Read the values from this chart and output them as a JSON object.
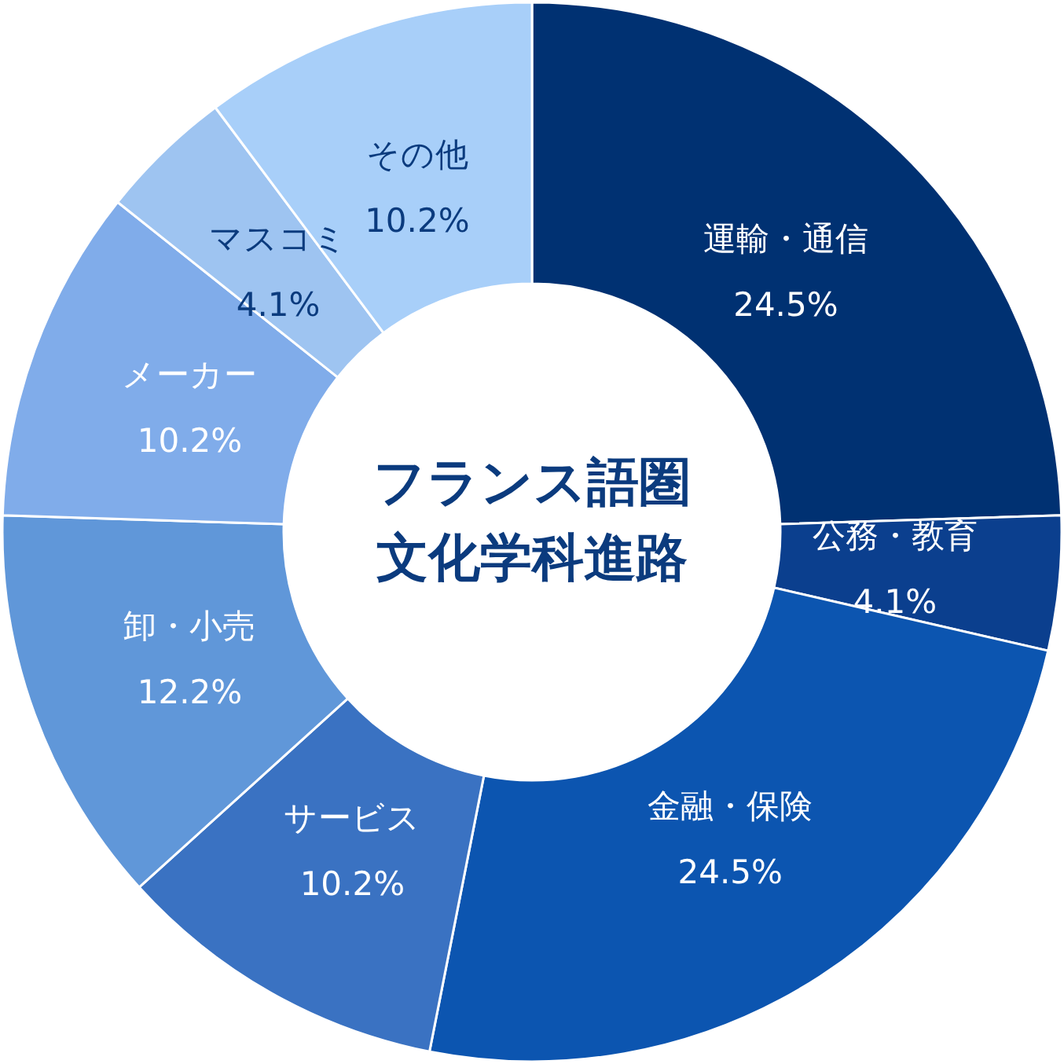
{
  "chart_data": {
    "type": "donut",
    "title": "フランス語圏文化学科進路",
    "categories": [
      "運輸・通信",
      "公務・教育",
      "金融・保険",
      "サービス",
      "卸・小売",
      "メーカー",
      "マスコミ",
      "その他"
    ],
    "values": [
      24.5,
      4.1,
      24.5,
      10.2,
      12.2,
      10.2,
      4.1,
      10.2
    ],
    "value_labels": [
      "24.5%",
      "4.1%",
      "24.5%",
      "10.2%",
      "12.2%",
      "10.2%",
      "4.1%",
      "10.2%"
    ],
    "colors": [
      "#003172",
      "#0b3f8e",
      "#0c55b0",
      "#3a72c2",
      "#6097d9",
      "#80acea",
      "#9ec4f1",
      "#a8cff9"
    ]
  }
}
